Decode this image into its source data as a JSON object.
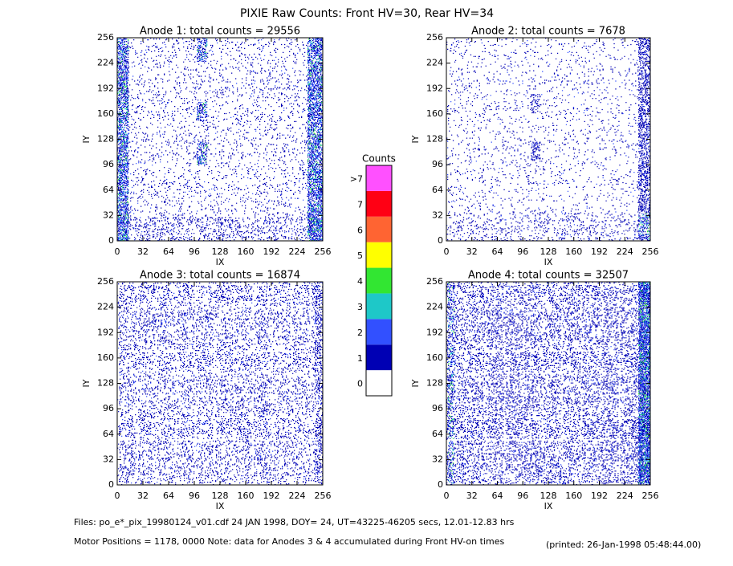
{
  "title": "PIXIE Raw Counts:  Front HV=30, Rear HV=34",
  "chart_data": [
    {
      "type": "heatmap",
      "title": "Anode 1: total counts = 29556",
      "x_label": "IX",
      "y_label": "IY",
      "xlim": [
        0,
        256
      ],
      "xticks": [
        0,
        32,
        64,
        96,
        128,
        160,
        192,
        224,
        256
      ],
      "ylim": [
        0,
        256
      ],
      "yticks": [
        0,
        32,
        64,
        96,
        128,
        160,
        192,
        224,
        256
      ]
    },
    {
      "type": "heatmap",
      "title": "Anode 2: total counts = 7678",
      "x_label": "IX",
      "y_label": "IY",
      "xlim": [
        0,
        256
      ],
      "xticks": [
        0,
        32,
        64,
        96,
        128,
        160,
        192,
        224,
        256
      ],
      "ylim": [
        0,
        256
      ],
      "yticks": [
        0,
        32,
        64,
        96,
        128,
        160,
        192,
        224,
        256
      ]
    },
    {
      "type": "heatmap",
      "title": "Anode 3: total counts = 16874",
      "x_label": "IX",
      "y_label": "IY",
      "xlim": [
        0,
        256
      ],
      "xticks": [
        0,
        32,
        64,
        96,
        128,
        160,
        192,
        224,
        256
      ],
      "ylim": [
        0,
        256
      ],
      "yticks": [
        0,
        32,
        64,
        96,
        128,
        160,
        192,
        224,
        256
      ]
    },
    {
      "type": "heatmap",
      "title": "Anode 4: total counts = 32507",
      "x_label": "IX",
      "y_label": "IY",
      "xlim": [
        0,
        256
      ],
      "xticks": [
        0,
        32,
        64,
        96,
        128,
        160,
        192,
        224,
        256
      ],
      "ylim": [
        0,
        256
      ],
      "yticks": [
        0,
        32,
        64,
        96,
        128,
        160,
        192,
        224,
        256
      ]
    }
  ],
  "colorbar": {
    "title": "Counts",
    "labels": [
      "0",
      "1",
      "2",
      "3",
      "4",
      "5",
      "6",
      "7",
      ">7"
    ],
    "colors": [
      "#ffffff",
      "#0000b4",
      "#3250ff",
      "#1ec8c8",
      "#32e632",
      "#ffff00",
      "#ff6432",
      "#ff0014",
      "#ff50ff"
    ]
  },
  "footer": {
    "files": "Files: po_e*_pix_19980124_v01.cdf    24 JAN 1998, DOY= 24, UT=43225-46205 secs, 12.01-12.83 hrs",
    "motor": "Motor Positions = 1178, 0000   Note: data for Anodes 3 & 4 accumulated during Front HV-on times",
    "printed": "(printed: 26-Jan-1998 05:48:44.00)"
  }
}
